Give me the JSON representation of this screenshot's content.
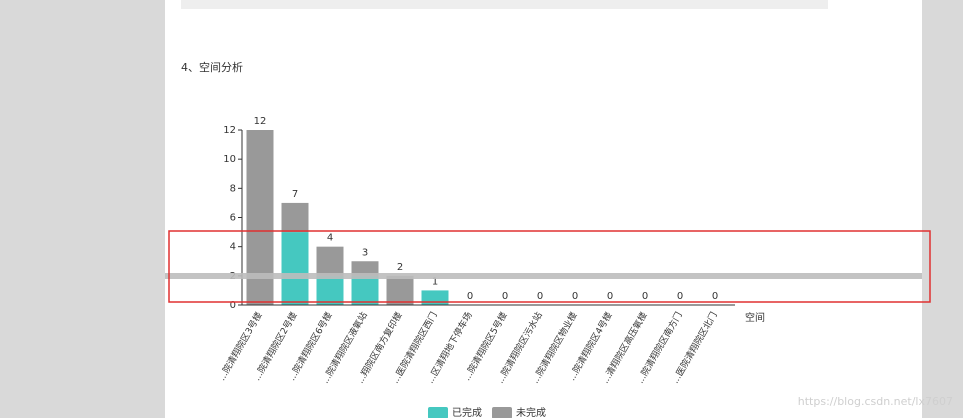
{
  "section_title": "4、空间分析",
  "watermark": "https://blog.csdn.net/lx7607",
  "chart_data": {
    "type": "bar",
    "stacked": true,
    "categories": [
      "...院清翔院区3号楼",
      "...院清翔院区2号楼",
      "...院清翔院区6号楼",
      "...院清翔院区液氧站",
      "...翔院区南方复印楼",
      "...医院清翔院区西门",
      "...区清翔地下停车场",
      "...院清翔院区5号楼",
      "...院清翔院区污水站",
      "...院清翔院区物业楼",
      "...院清翔院区4号楼",
      "...清翔院区高压氧楼",
      "...院清翔院区南方门",
      "...医院清翔院区北门"
    ],
    "series": [
      {
        "name": "已完成",
        "color": "#45c8c0",
        "values": [
          0,
          5,
          2,
          2,
          0,
          1,
          0,
          0,
          0,
          0,
          0,
          0,
          0,
          0
        ]
      },
      {
        "name": "未完成",
        "color": "#999999",
        "values": [
          12,
          2,
          2,
          1,
          2,
          0,
          0,
          0,
          0,
          0,
          0,
          0,
          0,
          0
        ]
      }
    ],
    "totals": [
      12,
      7,
      4,
      3,
      2,
      1,
      0,
      0,
      0,
      0,
      0,
      0,
      0,
      0
    ],
    "x_label": "空间",
    "ylim": [
      0,
      12
    ],
    "yticks": [
      0,
      2,
      4,
      6,
      8,
      10,
      12
    ],
    "legend": "bottom"
  }
}
